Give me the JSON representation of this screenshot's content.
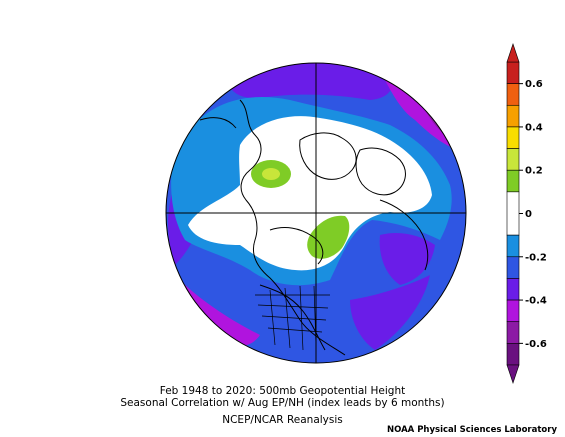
{
  "title": {
    "line1": "Feb 1948 to 2020: 500mb Geopotential Height",
    "line2": "Seasonal Correlation w/ Aug EP/NH (index leads by 6 months)",
    "line3": "NCEP/NCAR Reanalysis"
  },
  "credit": "NOAA Physical Sciences Laboratory",
  "colorbar": {
    "bins": [
      {
        "from": 0.6,
        "to": 0.7,
        "color": "#c8201e"
      },
      {
        "from": 0.5,
        "to": 0.6,
        "color": "#f06010"
      },
      {
        "from": 0.4,
        "to": 0.5,
        "color": "#f7a000"
      },
      {
        "from": 0.3,
        "to": 0.4,
        "color": "#f8dd00"
      },
      {
        "from": 0.2,
        "to": 0.3,
        "color": "#c8e63a"
      },
      {
        "from": 0.1,
        "to": 0.2,
        "color": "#7fcc26"
      },
      {
        "from": -0.1,
        "to": 0.1,
        "color": "#ffffff"
      },
      {
        "from": -0.2,
        "to": -0.1,
        "color": "#1a8fe0"
      },
      {
        "from": -0.3,
        "to": -0.2,
        "color": "#2f56e3"
      },
      {
        "from": -0.4,
        "to": -0.3,
        "color": "#6a1de8"
      },
      {
        "from": -0.5,
        "to": -0.4,
        "color": "#b014de"
      },
      {
        "from": -0.6,
        "to": -0.5,
        "color": "#8c1aa5"
      },
      {
        "from": -0.7,
        "to": -0.6,
        "color": "#6a1180"
      }
    ],
    "ticks": [
      {
        "value": 0.6,
        "label": "0.6"
      },
      {
        "value": 0.4,
        "label": "0.4"
      },
      {
        "value": 0.2,
        "label": "0.2"
      },
      {
        "value": 0.0,
        "label": "0"
      },
      {
        "value": -0.2,
        "label": "-0.2"
      },
      {
        "value": -0.4,
        "label": "-0.4"
      },
      {
        "value": -0.6,
        "label": "-0.6"
      }
    ],
    "range": [
      -0.7,
      0.7
    ]
  },
  "map": {
    "projection": "north-polar-stereographic",
    "base_color": "#2f56e3"
  }
}
